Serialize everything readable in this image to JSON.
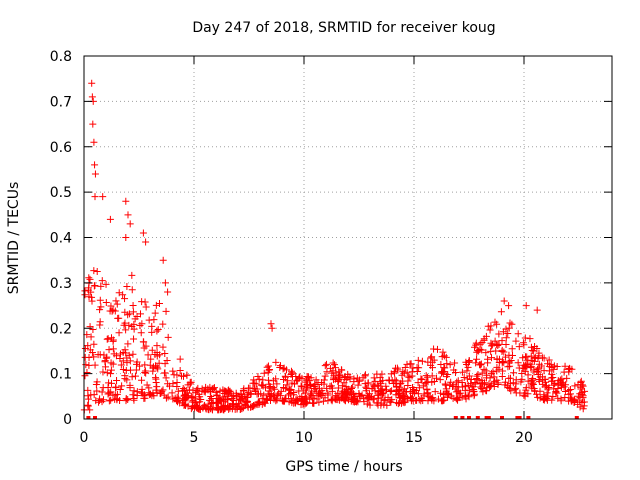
{
  "chart_data": {
    "type": "scatter",
    "title": "Day 247 of 2018, SRMTID for receiver koug",
    "xlabel": "GPS time / hours",
    "ylabel": "SRMTID / TECUs",
    "xlim": [
      0,
      24
    ],
    "ylim": [
      0,
      0.8
    ],
    "x_ticks": [
      "0",
      "5",
      "10",
      "15",
      "20"
    ],
    "y_ticks": [
      "0",
      "0.1",
      "0.2",
      "0.3",
      "0.4",
      "0.5",
      "0.6",
      "0.7",
      "0.8"
    ],
    "grid": true,
    "marker": "+",
    "series_color": "#ff0000",
    "envelope": [
      {
        "x": 0.0,
        "lo": 0.02,
        "hi": 0.3
      },
      {
        "x": 0.3,
        "lo": 0.02,
        "hi": 0.33
      },
      {
        "x": 0.5,
        "lo": 0.03,
        "hi": 0.35
      },
      {
        "x": 1.0,
        "lo": 0.04,
        "hi": 0.3
      },
      {
        "x": 1.5,
        "lo": 0.04,
        "hi": 0.28
      },
      {
        "x": 2.0,
        "lo": 0.04,
        "hi": 0.33
      },
      {
        "x": 2.5,
        "lo": 0.04,
        "hi": 0.3
      },
      {
        "x": 3.0,
        "lo": 0.05,
        "hi": 0.25
      },
      {
        "x": 3.5,
        "lo": 0.05,
        "hi": 0.28
      },
      {
        "x": 4.0,
        "lo": 0.04,
        "hi": 0.2
      },
      {
        "x": 4.5,
        "lo": 0.03,
        "hi": 0.12
      },
      {
        "x": 5.0,
        "lo": 0.02,
        "hi": 0.07
      },
      {
        "x": 6.0,
        "lo": 0.02,
        "hi": 0.07
      },
      {
        "x": 7.0,
        "lo": 0.02,
        "hi": 0.06
      },
      {
        "x": 8.0,
        "lo": 0.03,
        "hi": 0.1
      },
      {
        "x": 8.5,
        "lo": 0.04,
        "hi": 0.14
      },
      {
        "x": 9.0,
        "lo": 0.04,
        "hi": 0.12
      },
      {
        "x": 10.0,
        "lo": 0.03,
        "hi": 0.09
      },
      {
        "x": 11.0,
        "lo": 0.04,
        "hi": 0.12
      },
      {
        "x": 11.5,
        "lo": 0.04,
        "hi": 0.13
      },
      {
        "x": 12.0,
        "lo": 0.04,
        "hi": 0.1
      },
      {
        "x": 13.0,
        "lo": 0.03,
        "hi": 0.1
      },
      {
        "x": 14.0,
        "lo": 0.03,
        "hi": 0.11
      },
      {
        "x": 15.0,
        "lo": 0.04,
        "hi": 0.13
      },
      {
        "x": 16.0,
        "lo": 0.04,
        "hi": 0.16
      },
      {
        "x": 17.0,
        "lo": 0.04,
        "hi": 0.12
      },
      {
        "x": 18.0,
        "lo": 0.05,
        "hi": 0.18
      },
      {
        "x": 18.5,
        "lo": 0.07,
        "hi": 0.22
      },
      {
        "x": 19.0,
        "lo": 0.07,
        "hi": 0.24
      },
      {
        "x": 19.5,
        "lo": 0.06,
        "hi": 0.21
      },
      {
        "x": 20.0,
        "lo": 0.05,
        "hi": 0.2
      },
      {
        "x": 20.5,
        "lo": 0.05,
        "hi": 0.16
      },
      {
        "x": 21.0,
        "lo": 0.04,
        "hi": 0.14
      },
      {
        "x": 22.0,
        "lo": 0.04,
        "hi": 0.12
      },
      {
        "x": 22.8,
        "lo": 0.02,
        "hi": 0.08
      }
    ],
    "outliers": [
      {
        "x": 0.35,
        "y": 0.74
      },
      {
        "x": 0.38,
        "y": 0.71
      },
      {
        "x": 0.42,
        "y": 0.7
      },
      {
        "x": 0.4,
        "y": 0.65
      },
      {
        "x": 0.45,
        "y": 0.61
      },
      {
        "x": 0.48,
        "y": 0.56
      },
      {
        "x": 0.52,
        "y": 0.54
      },
      {
        "x": 0.5,
        "y": 0.49
      },
      {
        "x": 0.85,
        "y": 0.49
      },
      {
        "x": 1.9,
        "y": 0.48
      },
      {
        "x": 2.0,
        "y": 0.45
      },
      {
        "x": 2.1,
        "y": 0.43
      },
      {
        "x": 1.2,
        "y": 0.44
      },
      {
        "x": 2.7,
        "y": 0.41
      },
      {
        "x": 2.8,
        "y": 0.39
      },
      {
        "x": 1.9,
        "y": 0.4
      },
      {
        "x": 3.6,
        "y": 0.35
      },
      {
        "x": 3.7,
        "y": 0.3
      },
      {
        "x": 3.8,
        "y": 0.28
      },
      {
        "x": 8.5,
        "y": 0.21
      },
      {
        "x": 8.55,
        "y": 0.2
      },
      {
        "x": 19.1,
        "y": 0.26
      },
      {
        "x": 19.3,
        "y": 0.25
      },
      {
        "x": 20.1,
        "y": 0.25
      },
      {
        "x": 20.6,
        "y": 0.24
      }
    ],
    "zero_markers": [
      0.2,
      0.5,
      16.9,
      17.2,
      17.5,
      17.9,
      18.3,
      18.4,
      19.0,
      19.7,
      19.8,
      20.2,
      22.4
    ]
  }
}
